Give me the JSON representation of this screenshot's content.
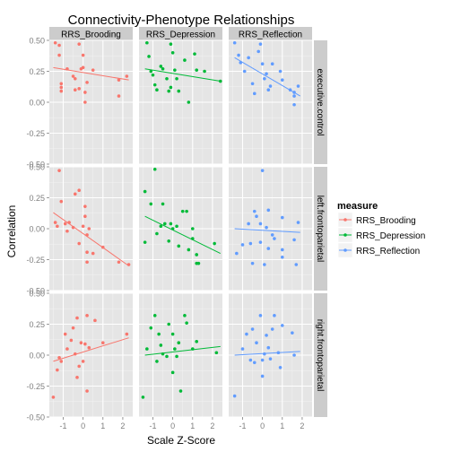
{
  "chart_data": {
    "type": "scatter",
    "title": "Connectivity-Phenotype Relationships",
    "xlabel": "Scale Z-Score",
    "ylabel": "Correlation",
    "xlim": [
      -1.7,
      2.5
    ],
    "ylim": [
      -0.5,
      0.5
    ],
    "x_ticks": [
      -1,
      0,
      1,
      2
    ],
    "x_tick_labels": [
      "-1",
      "0",
      "1",
      "2"
    ],
    "y_ticks": [
      -0.5,
      -0.25,
      0,
      0.25,
      0.5
    ],
    "y_tick_labels": [
      "-0.50",
      "-0.25",
      "0.00",
      "0.25",
      "0.50"
    ],
    "grid": true,
    "legend_position": "right",
    "legend_title": "measure",
    "col_facets": [
      "RRS_Brooding",
      "RRS_Depression",
      "RRS_Reflection"
    ],
    "row_facets": [
      "executive.control",
      "left.frontoparietal",
      "right.frontoparietal"
    ],
    "series": [
      {
        "name": "RRS_Brooding",
        "color": "#F8766D",
        "facet_col": 0,
        "panels": [
          {
            "facet_row": 0,
            "points": [
              [
                -1.4,
                0.48
              ],
              [
                -1.2,
                0.38
              ],
              [
                -1.2,
                0.46
              ],
              [
                -1.1,
                0.15
              ],
              [
                -1.1,
                0.12
              ],
              [
                -1.1,
                0.09
              ],
              [
                -0.8,
                0.27
              ],
              [
                -0.5,
                0.21
              ],
              [
                -0.4,
                0.1
              ],
              [
                -0.4,
                0.19
              ],
              [
                -0.2,
                0.11
              ],
              [
                -0.2,
                0.47
              ],
              [
                -0.1,
                0.27
              ],
              [
                0.0,
                0.28
              ],
              [
                0.0,
                0.38
              ],
              [
                0.1,
                0.08
              ],
              [
                0.1,
                0.0
              ],
              [
                0.2,
                0.16
              ],
              [
                0.5,
                0.26
              ],
              [
                1.8,
                0.18
              ],
              [
                1.8,
                0.05
              ],
              [
                2.2,
                0.21
              ]
            ],
            "fit": [
              [
                -1.5,
                0.28
              ],
              [
                2.3,
                0.18
              ]
            ]
          },
          {
            "facet_row": 1,
            "points": [
              [
                -1.4,
                0.05
              ],
              [
                -1.3,
                0.02
              ],
              [
                -1.2,
                0.47
              ],
              [
                -1.1,
                0.22
              ],
              [
                -0.9,
                0.04
              ],
              [
                -0.8,
                -0.02
              ],
              [
                -0.7,
                0.05
              ],
              [
                -0.5,
                0.01
              ],
              [
                -0.4,
                0.28
              ],
              [
                -0.2,
                0.31
              ],
              [
                -0.2,
                -0.12
              ],
              [
                0.0,
                0.02
              ],
              [
                0.1,
                0.18
              ],
              [
                0.1,
                0.1
              ],
              [
                0.2,
                -0.05
              ],
              [
                0.2,
                -0.19
              ],
              [
                0.2,
                -0.27
              ],
              [
                0.3,
                0.0
              ],
              [
                0.5,
                -0.2
              ],
              [
                1.0,
                -0.15
              ],
              [
                1.8,
                -0.27
              ],
              [
                2.3,
                -0.29
              ]
            ],
            "fit": [
              [
                -1.5,
                0.13
              ],
              [
                2.3,
                -0.3
              ]
            ]
          },
          {
            "facet_row": 2,
            "points": [
              [
                -1.5,
                -0.34
              ],
              [
                -1.3,
                -0.12
              ],
              [
                -1.2,
                -0.02
              ],
              [
                -1.1,
                -0.05
              ],
              [
                -0.9,
                0.17
              ],
              [
                -0.8,
                0.05
              ],
              [
                -0.6,
                0.12
              ],
              [
                -0.5,
                0.22
              ],
              [
                -0.4,
                0.01
              ],
              [
                -0.3,
                -0.18
              ],
              [
                -0.3,
                0.3
              ],
              [
                -0.2,
                -0.09
              ],
              [
                -0.1,
                0.1
              ],
              [
                0.0,
                -0.05
              ],
              [
                0.1,
                0.09
              ],
              [
                0.2,
                0.32
              ],
              [
                0.2,
                -0.29
              ],
              [
                0.3,
                0.06
              ],
              [
                0.6,
                0.28
              ],
              [
                1.0,
                0.1
              ],
              [
                2.2,
                0.17
              ]
            ],
            "fit": [
              [
                -1.5,
                -0.05
              ],
              [
                2.3,
                0.14
              ]
            ]
          }
        ]
      },
      {
        "name": "RRS_Depression",
        "color": "#00BA38",
        "facet_col": 1,
        "panels": [
          {
            "facet_row": 0,
            "points": [
              [
                -1.3,
                0.48
              ],
              [
                -1.2,
                0.37
              ],
              [
                -1.1,
                0.25
              ],
              [
                -1.0,
                0.22
              ],
              [
                -0.9,
                0.14
              ],
              [
                -0.8,
                0.1
              ],
              [
                -0.6,
                0.29
              ],
              [
                -0.5,
                0.27
              ],
              [
                -0.3,
                0.19
              ],
              [
                -0.2,
                0.09
              ],
              [
                -0.1,
                0.47
              ],
              [
                -0.1,
                0.12
              ],
              [
                0.0,
                0.4
              ],
              [
                0.1,
                0.26
              ],
              [
                0.2,
                0.19
              ],
              [
                0.3,
                0.09
              ],
              [
                0.6,
                0.34
              ],
              [
                0.8,
                0.0
              ],
              [
                1.1,
                0.39
              ],
              [
                1.2,
                0.26
              ],
              [
                1.6,
                0.25
              ],
              [
                2.4,
                0.17
              ]
            ],
            "fit": [
              [
                -1.4,
                0.27
              ],
              [
                2.4,
                0.17
              ]
            ]
          },
          {
            "facet_row": 1,
            "points": [
              [
                -1.4,
                0.3
              ],
              [
                -1.4,
                -0.11
              ],
              [
                -1.1,
                0.2
              ],
              [
                -0.9,
                0.48
              ],
              [
                -0.8,
                -0.04
              ],
              [
                -0.6,
                0.02
              ],
              [
                -0.5,
                0.2
              ],
              [
                -0.4,
                0.04
              ],
              [
                -0.2,
                -0.1
              ],
              [
                -0.1,
                0.04
              ],
              [
                0.0,
                0.0
              ],
              [
                0.2,
                0.02
              ],
              [
                0.3,
                -0.14
              ],
              [
                0.5,
                0.14
              ],
              [
                0.7,
                0.14
              ],
              [
                0.8,
                -0.17
              ],
              [
                1.0,
                -0.08
              ],
              [
                1.0,
                0.0
              ],
              [
                1.2,
                -0.21
              ],
              [
                1.2,
                -0.28
              ],
              [
                1.3,
                -0.28
              ],
              [
                2.1,
                -0.12
              ]
            ],
            "fit": [
              [
                -1.4,
                0.1
              ],
              [
                2.4,
                -0.2
              ]
            ]
          },
          {
            "facet_row": 2,
            "points": [
              [
                -1.5,
                -0.34
              ],
              [
                -1.3,
                0.05
              ],
              [
                -1.1,
                0.22
              ],
              [
                -0.9,
                0.32
              ],
              [
                -0.8,
                -0.05
              ],
              [
                -0.7,
                0.17
              ],
              [
                -0.6,
                0.08
              ],
              [
                -0.5,
                0.01
              ],
              [
                -0.3,
                -0.01
              ],
              [
                -0.2,
                0.25
              ],
              [
                0.0,
                0.17
              ],
              [
                0.0,
                -0.14
              ],
              [
                0.1,
                0.05
              ],
              [
                0.2,
                -0.01
              ],
              [
                0.3,
                0.1
              ],
              [
                0.4,
                -0.29
              ],
              [
                0.6,
                0.32
              ],
              [
                0.7,
                0.26
              ],
              [
                1.0,
                0.05
              ],
              [
                1.2,
                0.11
              ],
              [
                2.2,
                0.02
              ]
            ],
            "fit": [
              [
                -1.4,
                0.0
              ],
              [
                2.4,
                0.07
              ]
            ]
          }
        ]
      },
      {
        "name": "RRS_Reflection",
        "color": "#619CFF",
        "facet_col": 2,
        "panels": [
          {
            "facet_row": 0,
            "points": [
              [
                -1.4,
                0.48
              ],
              [
                -1.2,
                0.38
              ],
              [
                -1.1,
                0.32
              ],
              [
                -0.9,
                0.25
              ],
              [
                -0.7,
                0.36
              ],
              [
                -0.5,
                0.15
              ],
              [
                -0.4,
                0.07
              ],
              [
                -0.2,
                0.41
              ],
              [
                -0.1,
                0.47
              ],
              [
                0.0,
                0.31
              ],
              [
                0.1,
                0.19
              ],
              [
                0.2,
                0.23
              ],
              [
                0.3,
                0.1
              ],
              [
                0.4,
                0.13
              ],
              [
                0.5,
                0.31
              ],
              [
                0.9,
                0.25
              ],
              [
                1.0,
                0.18
              ],
              [
                1.4,
                0.1
              ],
              [
                1.6,
                0.05
              ],
              [
                1.6,
                0.08
              ],
              [
                1.6,
                -0.02
              ],
              [
                1.8,
                0.13
              ]
            ],
            "fit": [
              [
                -1.4,
                0.36
              ],
              [
                1.9,
                0.05
              ]
            ]
          },
          {
            "facet_row": 1,
            "points": [
              [
                -1.3,
                -0.2
              ],
              [
                -1.0,
                -0.13
              ],
              [
                -0.7,
                0.04
              ],
              [
                -0.6,
                -0.12
              ],
              [
                -0.5,
                -0.28
              ],
              [
                -0.4,
                0.14
              ],
              [
                -0.3,
                0.1
              ],
              [
                -0.1,
                0.04
              ],
              [
                -0.1,
                -0.11
              ],
              [
                0.0,
                0.47
              ],
              [
                0.1,
                -0.29
              ],
              [
                0.2,
                0.01
              ],
              [
                0.3,
                0.15
              ],
              [
                0.3,
                -0.16
              ],
              [
                0.5,
                -0.05
              ],
              [
                0.6,
                -0.08
              ],
              [
                1.0,
                0.09
              ],
              [
                1.0,
                -0.17
              ],
              [
                1.0,
                -0.23
              ],
              [
                1.6,
                -0.09
              ],
              [
                1.7,
                -0.29
              ],
              [
                1.8,
                0.05
              ]
            ],
            "fit": [
              [
                -1.4,
                0.0
              ],
              [
                1.9,
                -0.03
              ]
            ]
          },
          {
            "facet_row": 2,
            "points": [
              [
                -1.4,
                -0.33
              ],
              [
                -1.0,
                0.05
              ],
              [
                -0.8,
                0.17
              ],
              [
                -0.6,
                -0.04
              ],
              [
                -0.5,
                0.21
              ],
              [
                -0.4,
                -0.06
              ],
              [
                -0.3,
                0.1
              ],
              [
                -0.1,
                0.32
              ],
              [
                0.0,
                -0.17
              ],
              [
                0.0,
                -0.04
              ],
              [
                0.1,
                0.01
              ],
              [
                0.2,
                0.16
              ],
              [
                0.3,
                0.06
              ],
              [
                0.4,
                -0.03
              ],
              [
                0.5,
                0.21
              ],
              [
                0.6,
                0.32
              ],
              [
                0.8,
                0.02
              ],
              [
                0.9,
                -0.1
              ],
              [
                1.0,
                0.24
              ],
              [
                1.5,
                0.18
              ],
              [
                1.6,
                0.0
              ]
            ],
            "fit": [
              [
                -1.4,
                0.0
              ],
              [
                1.9,
                0.03
              ]
            ]
          }
        ]
      }
    ]
  }
}
